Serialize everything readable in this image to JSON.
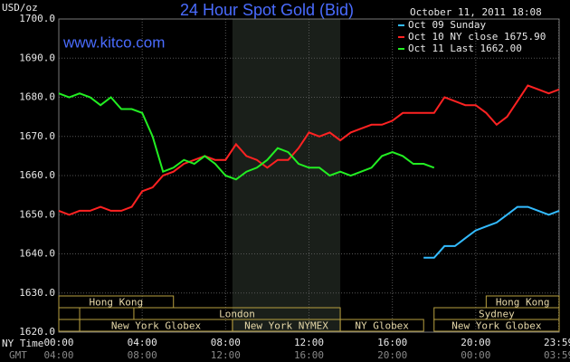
{
  "chart_data": {
    "type": "line",
    "title": "24 Hour Spot Gold (Bid)",
    "website": "www.kitco.com",
    "timestamp": "October 11, 2011 18:08",
    "y_unit": "USD/oz",
    "x_label": "NY Time",
    "x2_label": "GMT",
    "x": [
      0,
      0.5,
      1,
      1.5,
      2,
      2.5,
      3,
      3.5,
      4,
      4.5,
      5,
      5.5,
      6,
      6.5,
      7,
      7.5,
      8,
      8.5,
      9,
      9.5,
      10,
      10.5,
      11,
      11.5,
      12,
      12.5,
      13,
      13.5,
      14,
      14.5,
      15,
      15.5,
      16,
      16.5,
      17,
      17.5,
      18,
      18.5,
      19,
      19.5,
      20,
      20.5,
      21,
      21.5,
      22,
      22.5,
      23,
      23.5,
      24
    ],
    "series": [
      {
        "name": "Oct 09 Sunday",
        "color": "#33bbff",
        "values": [
          null,
          null,
          null,
          null,
          null,
          null,
          null,
          null,
          null,
          null,
          null,
          null,
          null,
          null,
          null,
          null,
          null,
          null,
          null,
          null,
          null,
          null,
          null,
          null,
          null,
          null,
          null,
          null,
          null,
          null,
          null,
          null,
          null,
          null,
          null,
          1639,
          1639,
          1642,
          1642,
          1644,
          1646,
          1647,
          1648,
          1650,
          1652,
          1652,
          1651,
          1650,
          1651
        ]
      },
      {
        "name": "Oct 10 NY close 1675.90",
        "color": "#ff2222",
        "values": [
          1651,
          1650,
          1651,
          1651,
          1652,
          1651,
          1651,
          1652,
          1656,
          1657,
          1660,
          1661,
          1663,
          1664,
          1665,
          1664,
          1664,
          1668,
          1665,
          1664,
          1662,
          1664,
          1664,
          1667,
          1671,
          1670,
          1671,
          1669,
          1671,
          1672,
          1673,
          1673,
          1674,
          1676,
          1676,
          1676,
          1676,
          1680,
          1679,
          1678,
          1678,
          1676,
          1673,
          1675,
          1679,
          1683,
          1682,
          1681,
          1682
        ]
      },
      {
        "name": "Oct 11 Last 1662.00",
        "color": "#22ee22",
        "values": [
          1681,
          1680,
          1681,
          1680,
          1678,
          1680,
          1677,
          1677,
          1676,
          1670,
          1661,
          1662,
          1664,
          1663,
          1665,
          1663,
          1660,
          1659,
          1661,
          1662,
          1664,
          1667,
          1666,
          1663,
          1662,
          1662,
          1660,
          1661,
          1660,
          1661,
          1662,
          1665,
          1666,
          1665,
          1663,
          1663,
          1662,
          null,
          null,
          null,
          null,
          null,
          null,
          null,
          null,
          null,
          null,
          null,
          null
        ]
      }
    ],
    "xlim": [
      0,
      24
    ],
    "xticks": [
      {
        "value": 0,
        "label": "00:00"
      },
      {
        "value": 4,
        "label": "04:00"
      },
      {
        "value": 8,
        "label": "08:00"
      },
      {
        "value": 12,
        "label": "12:00"
      },
      {
        "value": 16,
        "label": "16:00"
      },
      {
        "value": 20,
        "label": "20:00"
      },
      {
        "value": 23.98,
        "label": "23:59"
      }
    ],
    "x2ticks": [
      {
        "value": 0,
        "label": "04:00"
      },
      {
        "value": 4,
        "label": "08:00"
      },
      {
        "value": 8,
        "label": "12:00"
      },
      {
        "value": 12,
        "label": "16:00"
      },
      {
        "value": 16,
        "label": "20:00"
      },
      {
        "value": 20,
        "label": "00:00"
      },
      {
        "value": 23.98,
        "label": "03:59"
      }
    ],
    "ylim": [
      1620,
      1700
    ],
    "yticks": [
      {
        "value": 1620,
        "label": "1620.0"
      },
      {
        "value": 1630,
        "label": "1630.0"
      },
      {
        "value": 1640,
        "label": "1640.0"
      },
      {
        "value": 1650,
        "label": "1650.0"
      },
      {
        "value": 1660,
        "label": "1660.0"
      },
      {
        "value": 1670,
        "label": "1670.0"
      },
      {
        "value": 1680,
        "label": "1680.0"
      },
      {
        "value": 1690,
        "label": "1690.0"
      },
      {
        "value": 1700,
        "label": "1700.0"
      }
    ],
    "grid": true,
    "shaded_range": [
      8.33,
      13.5
    ],
    "sessions": [
      {
        "label": "Hong Kong",
        "start": 0,
        "end": 5.5,
        "row": 0
      },
      {
        "label": null,
        "start": 0,
        "end": 1,
        "row": 1
      },
      {
        "label": "London",
        "start": 3.6,
        "end": 13.5,
        "row": 1
      },
      {
        "label": null,
        "start": 0,
        "end": 1,
        "row": 2
      },
      {
        "label": "New York Globex",
        "start": 1,
        "end": 8.33,
        "row": 2
      },
      {
        "label": "New York NYMEX",
        "start": 8.33,
        "end": 13.5,
        "row": 2
      },
      {
        "label": "NY Globex",
        "start": 13.5,
        "end": 17.5,
        "row": 2
      },
      {
        "label": "Hong Kong",
        "start": 20.5,
        "end": 24,
        "row": 0
      },
      {
        "label": "Sydney",
        "start": 18,
        "end": 24,
        "row": 1
      },
      {
        "label": "New York Globex",
        "start": 18,
        "end": 24,
        "row": 2
      }
    ]
  }
}
